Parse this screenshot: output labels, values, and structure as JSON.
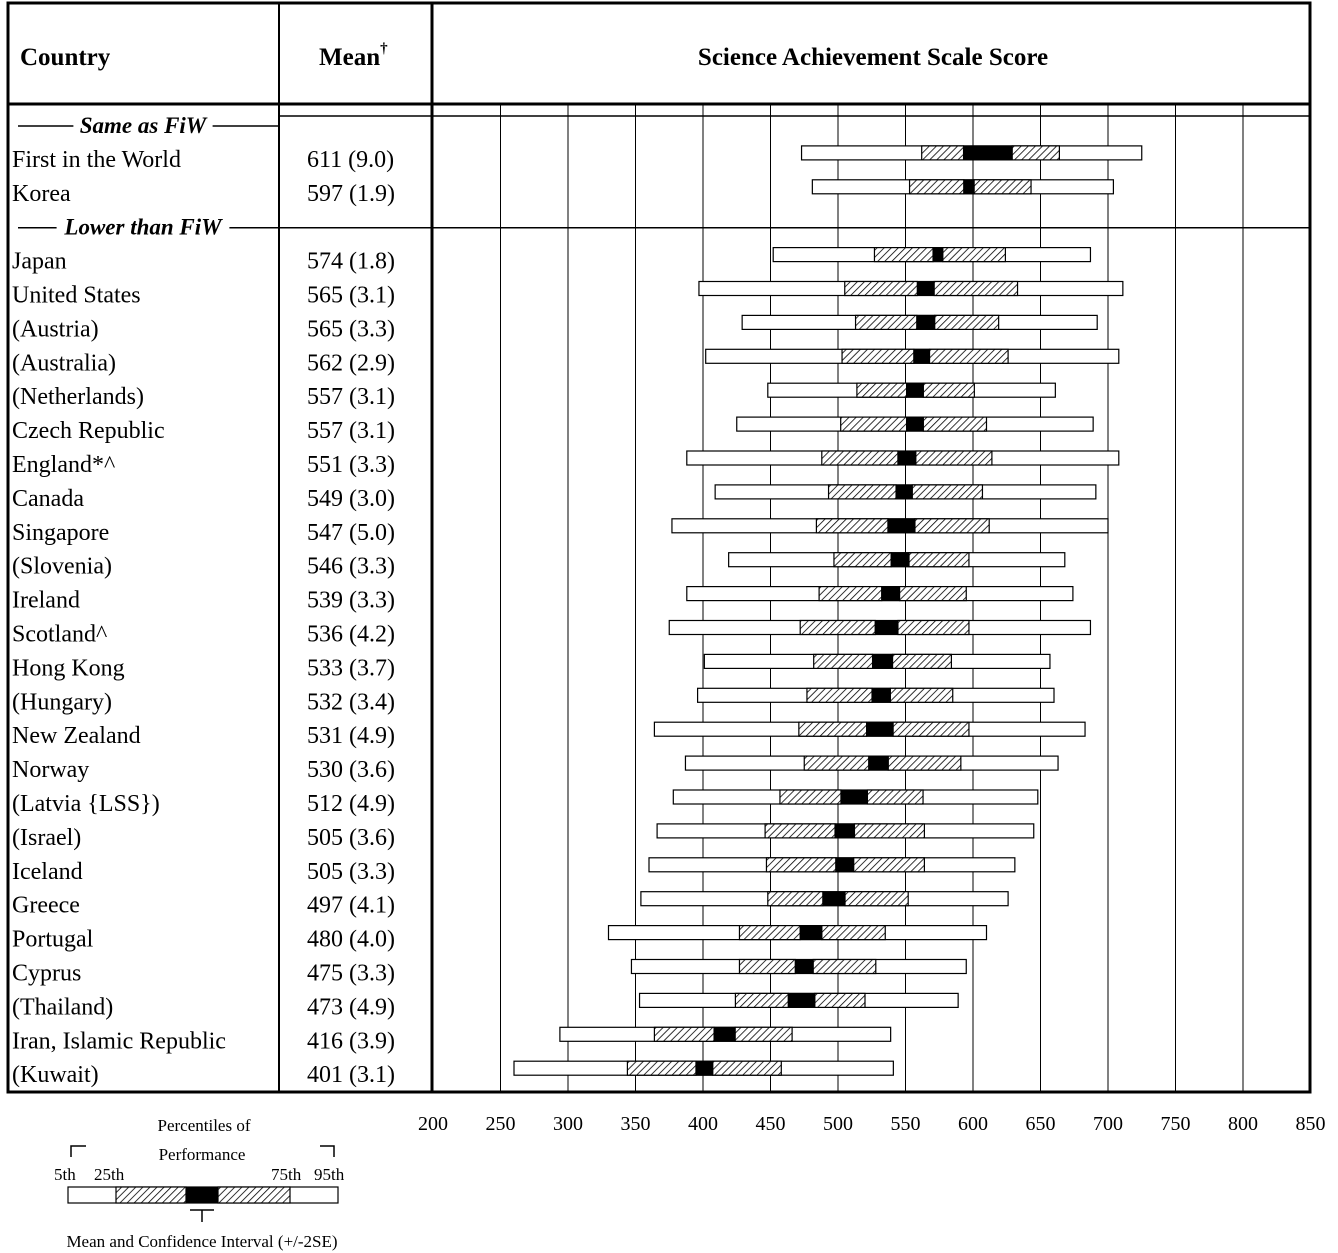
{
  "header": {
    "country": "Country",
    "mean": "Mean",
    "mean_mark": "†",
    "scale": "Science Achievement Scale Score"
  },
  "groups": [
    {
      "label": "Same as FiW",
      "start": 0
    },
    {
      "label": "Lower than FiW",
      "start": 2
    }
  ],
  "legend": {
    "title_line1": "Percentiles of",
    "title_line2": "Performance",
    "p5": "5th",
    "p25": "25th",
    "p75": "75th",
    "p95": "95th",
    "caption": "Mean and Confidence Interval (+/-2SE)"
  },
  "chart_data": {
    "type": "table",
    "x_axis": {
      "min": 200,
      "max": 850,
      "ticks": [
        200,
        250,
        300,
        350,
        400,
        450,
        500,
        550,
        600,
        650,
        700,
        750,
        800,
        850
      ]
    },
    "grid": true,
    "rows": [
      {
        "country": "First in the World",
        "mean_text": "611 (9.0)",
        "mean": 611,
        "se": 9.0,
        "p5": 473,
        "p25": 562,
        "p75": 664,
        "p95": 725
      },
      {
        "country": "Korea",
        "mean_text": "597 (1.9)",
        "mean": 597,
        "se": 1.9,
        "p5": 481,
        "p25": 553,
        "p75": 643,
        "p95": 704
      },
      {
        "country": "Japan",
        "mean_text": "574 (1.8)",
        "mean": 574,
        "se": 1.8,
        "p5": 452,
        "p25": 527,
        "p75": 624,
        "p95": 687
      },
      {
        "country": "United States",
        "mean_text": "565 (3.1)",
        "mean": 565,
        "se": 3.1,
        "p5": 397,
        "p25": 505,
        "p75": 633,
        "p95": 711
      },
      {
        "country": "(Austria)",
        "mean_text": "565 (3.3)",
        "mean": 565,
        "se": 3.3,
        "p5": 429,
        "p25": 513,
        "p75": 619,
        "p95": 692
      },
      {
        "country": "(Australia)",
        "mean_text": "562 (2.9)",
        "mean": 562,
        "se": 2.9,
        "p5": 402,
        "p25": 503,
        "p75": 626,
        "p95": 708
      },
      {
        "country": "(Netherlands)",
        "mean_text": "557 (3.1)",
        "mean": 557,
        "se": 3.1,
        "p5": 448,
        "p25": 514,
        "p75": 601,
        "p95": 661
      },
      {
        "country": "Czech Republic",
        "mean_text": "557 (3.1)",
        "mean": 557,
        "se": 3.1,
        "p5": 425,
        "p25": 502,
        "p75": 610,
        "p95": 689
      },
      {
        "country": "England*^",
        "mean_text": "551 (3.3)",
        "mean": 551,
        "se": 3.3,
        "p5": 388,
        "p25": 488,
        "p75": 614,
        "p95": 708
      },
      {
        "country": "Canada",
        "mean_text": "549 (3.0)",
        "mean": 549,
        "se": 3.0,
        "p5": 409,
        "p25": 493,
        "p75": 607,
        "p95": 691
      },
      {
        "country": "Singapore",
        "mean_text": "547 (5.0)",
        "mean": 547,
        "se": 5.0,
        "p5": 377,
        "p25": 484,
        "p75": 612,
        "p95": 700
      },
      {
        "country": "(Slovenia)",
        "mean_text": "546 (3.3)",
        "mean": 546,
        "se": 3.3,
        "p5": 419,
        "p25": 497,
        "p75": 597,
        "p95": 668
      },
      {
        "country": "Ireland",
        "mean_text": "539 (3.3)",
        "mean": 539,
        "se": 3.3,
        "p5": 388,
        "p25": 486,
        "p75": 595,
        "p95": 674
      },
      {
        "country": "Scotland^",
        "mean_text": "536 (4.2)",
        "mean": 536,
        "se": 4.2,
        "p5": 375,
        "p25": 472,
        "p75": 597,
        "p95": 687
      },
      {
        "country": "Hong Kong",
        "mean_text": "533 (3.7)",
        "mean": 533,
        "se": 3.7,
        "p5": 401,
        "p25": 482,
        "p75": 584,
        "p95": 657
      },
      {
        "country": "(Hungary)",
        "mean_text": "532 (3.4)",
        "mean": 532,
        "se": 3.4,
        "p5": 396,
        "p25": 477,
        "p75": 585,
        "p95": 660
      },
      {
        "country": "New Zealand",
        "mean_text": "531 (4.9)",
        "mean": 531,
        "se": 4.9,
        "p5": 364,
        "p25": 471,
        "p75": 597,
        "p95": 683
      },
      {
        "country": "Norway",
        "mean_text": "530 (3.6)",
        "mean": 530,
        "se": 3.6,
        "p5": 387,
        "p25": 475,
        "p75": 591,
        "p95": 663
      },
      {
        "country": "(Latvia {LSS})",
        "mean_text": "512 (4.9)",
        "mean": 512,
        "se": 4.9,
        "p5": 378,
        "p25": 457,
        "p75": 563,
        "p95": 648
      },
      {
        "country": "(Israel)",
        "mean_text": "505 (3.6)",
        "mean": 505,
        "se": 3.6,
        "p5": 366,
        "p25": 446,
        "p75": 564,
        "p95": 645
      },
      {
        "country": "Iceland",
        "mean_text": "505 (3.3)",
        "mean": 505,
        "se": 3.3,
        "p5": 360,
        "p25": 447,
        "p75": 564,
        "p95": 631
      },
      {
        "country": "Greece",
        "mean_text": "497 (4.1)",
        "mean": 497,
        "se": 4.1,
        "p5": 354,
        "p25": 448,
        "p75": 552,
        "p95": 626
      },
      {
        "country": "Portugal",
        "mean_text": "480 (4.0)",
        "mean": 480,
        "se": 4.0,
        "p5": 330,
        "p25": 427,
        "p75": 535,
        "p95": 610
      },
      {
        "country": "Cyprus",
        "mean_text": "475 (3.3)",
        "mean": 475,
        "se": 3.3,
        "p5": 347,
        "p25": 427,
        "p75": 528,
        "p95": 595
      },
      {
        "country": "(Thailand)",
        "mean_text": "473 (4.9)",
        "mean": 473,
        "se": 4.9,
        "p5": 353,
        "p25": 424,
        "p75": 520,
        "p95": 589
      },
      {
        "country": "Iran, Islamic Republic",
        "mean_text": "416 (3.9)",
        "mean": 416,
        "se": 3.9,
        "p5": 294,
        "p25": 364,
        "p75": 466,
        "p95": 539
      },
      {
        "country": "(Kuwait)",
        "mean_text": "401 (3.1)",
        "mean": 401,
        "se": 3.1,
        "p5": 260,
        "p25": 344,
        "p75": 458,
        "p95": 541
      }
    ]
  }
}
